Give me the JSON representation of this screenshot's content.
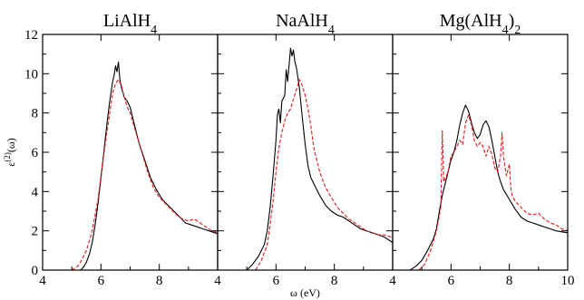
{
  "chart_data": {
    "type": "line",
    "xlabel": "ω (eV)",
    "ylabel": "ε(2)(ω)",
    "ylim": [
      0,
      12
    ],
    "y_ticks": [
      "0",
      "2",
      "4",
      "6",
      "8",
      "10",
      "12"
    ],
    "panels": [
      {
        "title": "LiAlH4",
        "xlim": [
          4,
          10
        ],
        "x_ticks": [
          "4",
          "6",
          "8"
        ],
        "series": [
          {
            "color": "#000000",
            "dash": "solid",
            "points": [
              [
                5.3,
                0
              ],
              [
                5.4,
                0.15
              ],
              [
                5.5,
                0.4
              ],
              [
                5.6,
                0.8
              ],
              [
                5.7,
                1.4
              ],
              [
                5.8,
                2.3
              ],
              [
                5.9,
                3.4
              ],
              [
                6.0,
                4.7
              ],
              [
                6.1,
                6.0
              ],
              [
                6.2,
                7.4
              ],
              [
                6.3,
                8.6
              ],
              [
                6.4,
                9.6
              ],
              [
                6.45,
                9.9
              ],
              [
                6.5,
                10.4
              ],
              [
                6.55,
                10.1
              ],
              [
                6.6,
                10.6
              ],
              [
                6.65,
                9.7
              ],
              [
                6.7,
                9.3
              ],
              [
                6.8,
                8.8
              ],
              [
                6.9,
                8.6
              ],
              [
                7.0,
                8.3
              ],
              [
                7.1,
                7.7
              ],
              [
                7.2,
                7.1
              ],
              [
                7.3,
                6.5
              ],
              [
                7.5,
                5.6
              ],
              [
                7.7,
                4.7
              ],
              [
                7.9,
                4.1
              ],
              [
                8.1,
                3.6
              ],
              [
                8.3,
                3.3
              ],
              [
                8.5,
                3.0
              ],
              [
                8.7,
                2.7
              ],
              [
                8.9,
                2.4
              ],
              [
                9.1,
                2.3
              ],
              [
                9.3,
                2.2
              ],
              [
                9.5,
                2.1
              ],
              [
                9.7,
                2.0
              ],
              [
                9.9,
                1.9
              ],
              [
                10.0,
                1.85
              ]
            ]
          },
          {
            "color": "#e41a1c",
            "dash": "dashed",
            "points": [
              [
                5.0,
                0
              ],
              [
                5.1,
                0.1
              ],
              [
                5.2,
                0.2
              ],
              [
                5.3,
                0.4
              ],
              [
                5.5,
                1.0
              ],
              [
                5.7,
                2.0
              ],
              [
                5.9,
                3.6
              ],
              [
                6.0,
                4.8
              ],
              [
                6.1,
                5.9
              ],
              [
                6.2,
                7.0
              ],
              [
                6.3,
                8.0
              ],
              [
                6.4,
                9.0
              ],
              [
                6.5,
                9.5
              ],
              [
                6.6,
                9.7
              ],
              [
                6.7,
                9.4
              ],
              [
                6.8,
                8.8
              ],
              [
                6.9,
                8.3
              ],
              [
                7.0,
                8.0
              ],
              [
                7.1,
                7.5
              ],
              [
                7.2,
                7.0
              ],
              [
                7.4,
                6.0
              ],
              [
                7.6,
                5.0
              ],
              [
                7.8,
                4.2
              ],
              [
                8.0,
                3.7
              ],
              [
                8.2,
                3.4
              ],
              [
                8.4,
                3.1
              ],
              [
                8.6,
                2.8
              ],
              [
                8.8,
                2.6
              ],
              [
                9.0,
                2.5
              ],
              [
                9.2,
                2.6
              ],
              [
                9.4,
                2.4
              ],
              [
                9.6,
                2.2
              ],
              [
                9.8,
                2.0
              ],
              [
                10.0,
                1.9
              ]
            ]
          }
        ]
      },
      {
        "title": "NaAlH4",
        "xlim": [
          4,
          10
        ],
        "x_ticks": [
          "4",
          "6",
          "8"
        ],
        "series": [
          {
            "color": "#000000",
            "dash": "solid",
            "points": [
              [
                5.0,
                0
              ],
              [
                5.2,
                0.3
              ],
              [
                5.4,
                0.7
              ],
              [
                5.6,
                1.3
              ],
              [
                5.7,
                2.0
              ],
              [
                5.8,
                3.2
              ],
              [
                5.9,
                4.8
              ],
              [
                6.0,
                6.6
              ],
              [
                6.05,
                7.9
              ],
              [
                6.1,
                8.2
              ],
              [
                6.15,
                7.5
              ],
              [
                6.2,
                8.6
              ],
              [
                6.3,
                8.9
              ],
              [
                6.35,
                10.2
              ],
              [
                6.4,
                9.6
              ],
              [
                6.5,
                11.3
              ],
              [
                6.55,
                10.9
              ],
              [
                6.6,
                11.2
              ],
              [
                6.65,
                10.6
              ],
              [
                6.7,
                10.3
              ],
              [
                6.8,
                9.3
              ],
              [
                6.9,
                7.8
              ],
              [
                7.0,
                6.4
              ],
              [
                7.1,
                5.3
              ],
              [
                7.2,
                4.7
              ],
              [
                7.3,
                4.4
              ],
              [
                7.5,
                3.8
              ],
              [
                7.7,
                3.3
              ],
              [
                7.9,
                3.0
              ],
              [
                8.1,
                2.8
              ],
              [
                8.3,
                2.7
              ],
              [
                8.5,
                2.5
              ],
              [
                8.7,
                2.3
              ],
              [
                8.9,
                2.1
              ],
              [
                9.1,
                2.0
              ],
              [
                9.3,
                1.9
              ],
              [
                9.5,
                1.8
              ],
              [
                9.7,
                1.7
              ],
              [
                9.9,
                1.5
              ],
              [
                10.0,
                1.4
              ]
            ]
          },
          {
            "color": "#e41a1c",
            "dash": "dashed",
            "points": [
              [
                5.3,
                0
              ],
              [
                5.5,
                0.5
              ],
              [
                5.7,
                1.3
              ],
              [
                5.8,
                2.3
              ],
              [
                5.9,
                3.5
              ],
              [
                6.0,
                5.0
              ],
              [
                6.1,
                6.2
              ],
              [
                6.2,
                7.0
              ],
              [
                6.3,
                7.6
              ],
              [
                6.4,
                8.0
              ],
              [
                6.5,
                8.2
              ],
              [
                6.6,
                8.7
              ],
              [
                6.7,
                9.2
              ],
              [
                6.8,
                9.7
              ],
              [
                6.9,
                9.4
              ],
              [
                7.0,
                8.9
              ],
              [
                7.1,
                8.2
              ],
              [
                7.2,
                7.3
              ],
              [
                7.3,
                6.2
              ],
              [
                7.5,
                5.0
              ],
              [
                7.7,
                4.2
              ],
              [
                7.9,
                3.7
              ],
              [
                8.1,
                3.2
              ],
              [
                8.3,
                2.9
              ],
              [
                8.5,
                2.6
              ],
              [
                8.7,
                2.4
              ],
              [
                8.9,
                2.2
              ],
              [
                9.1,
                2.0
              ],
              [
                9.3,
                1.9
              ],
              [
                9.5,
                1.8
              ],
              [
                9.7,
                1.8
              ],
              [
                9.9,
                1.7
              ],
              [
                10.0,
                1.7
              ]
            ]
          }
        ]
      },
      {
        "title": "Mg(AlH4)2",
        "xlim": [
          4,
          10
        ],
        "x_ticks": [
          "4",
          "6",
          "8",
          "10"
        ],
        "series": [
          {
            "color": "#000000",
            "dash": "solid",
            "points": [
              [
                4.6,
                0
              ],
              [
                4.8,
                0.2
              ],
              [
                5.0,
                0.5
              ],
              [
                5.2,
                1.0
              ],
              [
                5.4,
                1.6
              ],
              [
                5.5,
                2.1
              ],
              [
                5.6,
                3.0
              ],
              [
                5.7,
                3.8
              ],
              [
                5.8,
                4.4
              ],
              [
                5.9,
                5.0
              ],
              [
                6.0,
                5.6
              ],
              [
                6.1,
                6.0
              ],
              [
                6.2,
                6.6
              ],
              [
                6.3,
                7.4
              ],
              [
                6.4,
                8.0
              ],
              [
                6.5,
                8.4
              ],
              [
                6.6,
                8.1
              ],
              [
                6.7,
                7.5
              ],
              [
                6.8,
                7.0
              ],
              [
                6.9,
                6.7
              ],
              [
                7.0,
                6.9
              ],
              [
                7.1,
                7.4
              ],
              [
                7.2,
                7.6
              ],
              [
                7.3,
                7.3
              ],
              [
                7.4,
                6.6
              ],
              [
                7.5,
                5.8
              ],
              [
                7.6,
                5.0
              ],
              [
                7.7,
                4.5
              ],
              [
                7.8,
                4.1
              ],
              [
                8.0,
                3.6
              ],
              [
                8.2,
                3.1
              ],
              [
                8.4,
                2.7
              ],
              [
                8.6,
                2.5
              ],
              [
                8.8,
                2.4
              ],
              [
                9.0,
                2.3
              ],
              [
                9.2,
                2.2
              ],
              [
                9.4,
                2.1
              ],
              [
                9.6,
                2.0
              ],
              [
                9.8,
                1.95
              ],
              [
                10.0,
                1.9
              ]
            ]
          },
          {
            "color": "#e41a1c",
            "dash": "dashed",
            "points": [
              [
                4.9,
                0
              ],
              [
                5.1,
                0.3
              ],
              [
                5.3,
                1.0
              ],
              [
                5.5,
                2.0
              ],
              [
                5.65,
                3.2
              ],
              [
                5.7,
                7.1
              ],
              [
                5.75,
                4.5
              ],
              [
                5.9,
                5.0
              ],
              [
                6.0,
                5.8
              ],
              [
                6.1,
                6.0
              ],
              [
                6.2,
                6.3
              ],
              [
                6.3,
                6.6
              ],
              [
                6.4,
                6.4
              ],
              [
                6.5,
                7.5
              ],
              [
                6.6,
                7.9
              ],
              [
                6.7,
                7.4
              ],
              [
                6.8,
                6.6
              ],
              [
                6.9,
                6.3
              ],
              [
                7.0,
                6.5
              ],
              [
                7.1,
                6.3
              ],
              [
                7.2,
                5.8
              ],
              [
                7.3,
                6.3
              ],
              [
                7.4,
                5.9
              ],
              [
                7.5,
                5.2
              ],
              [
                7.6,
                5.0
              ],
              [
                7.7,
                5.8
              ],
              [
                7.75,
                7.0
              ],
              [
                7.8,
                5.8
              ],
              [
                7.9,
                4.8
              ],
              [
                8.0,
                5.4
              ],
              [
                8.05,
                4.2
              ],
              [
                8.1,
                3.8
              ],
              [
                8.2,
                3.5
              ],
              [
                8.4,
                3.2
              ],
              [
                8.6,
                2.9
              ],
              [
                8.8,
                2.8
              ],
              [
                9.0,
                2.9
              ],
              [
                9.2,
                2.6
              ],
              [
                9.4,
                2.4
              ],
              [
                9.6,
                2.3
              ],
              [
                9.8,
                2.1
              ],
              [
                10.0,
                2.0
              ]
            ]
          }
        ]
      }
    ]
  }
}
